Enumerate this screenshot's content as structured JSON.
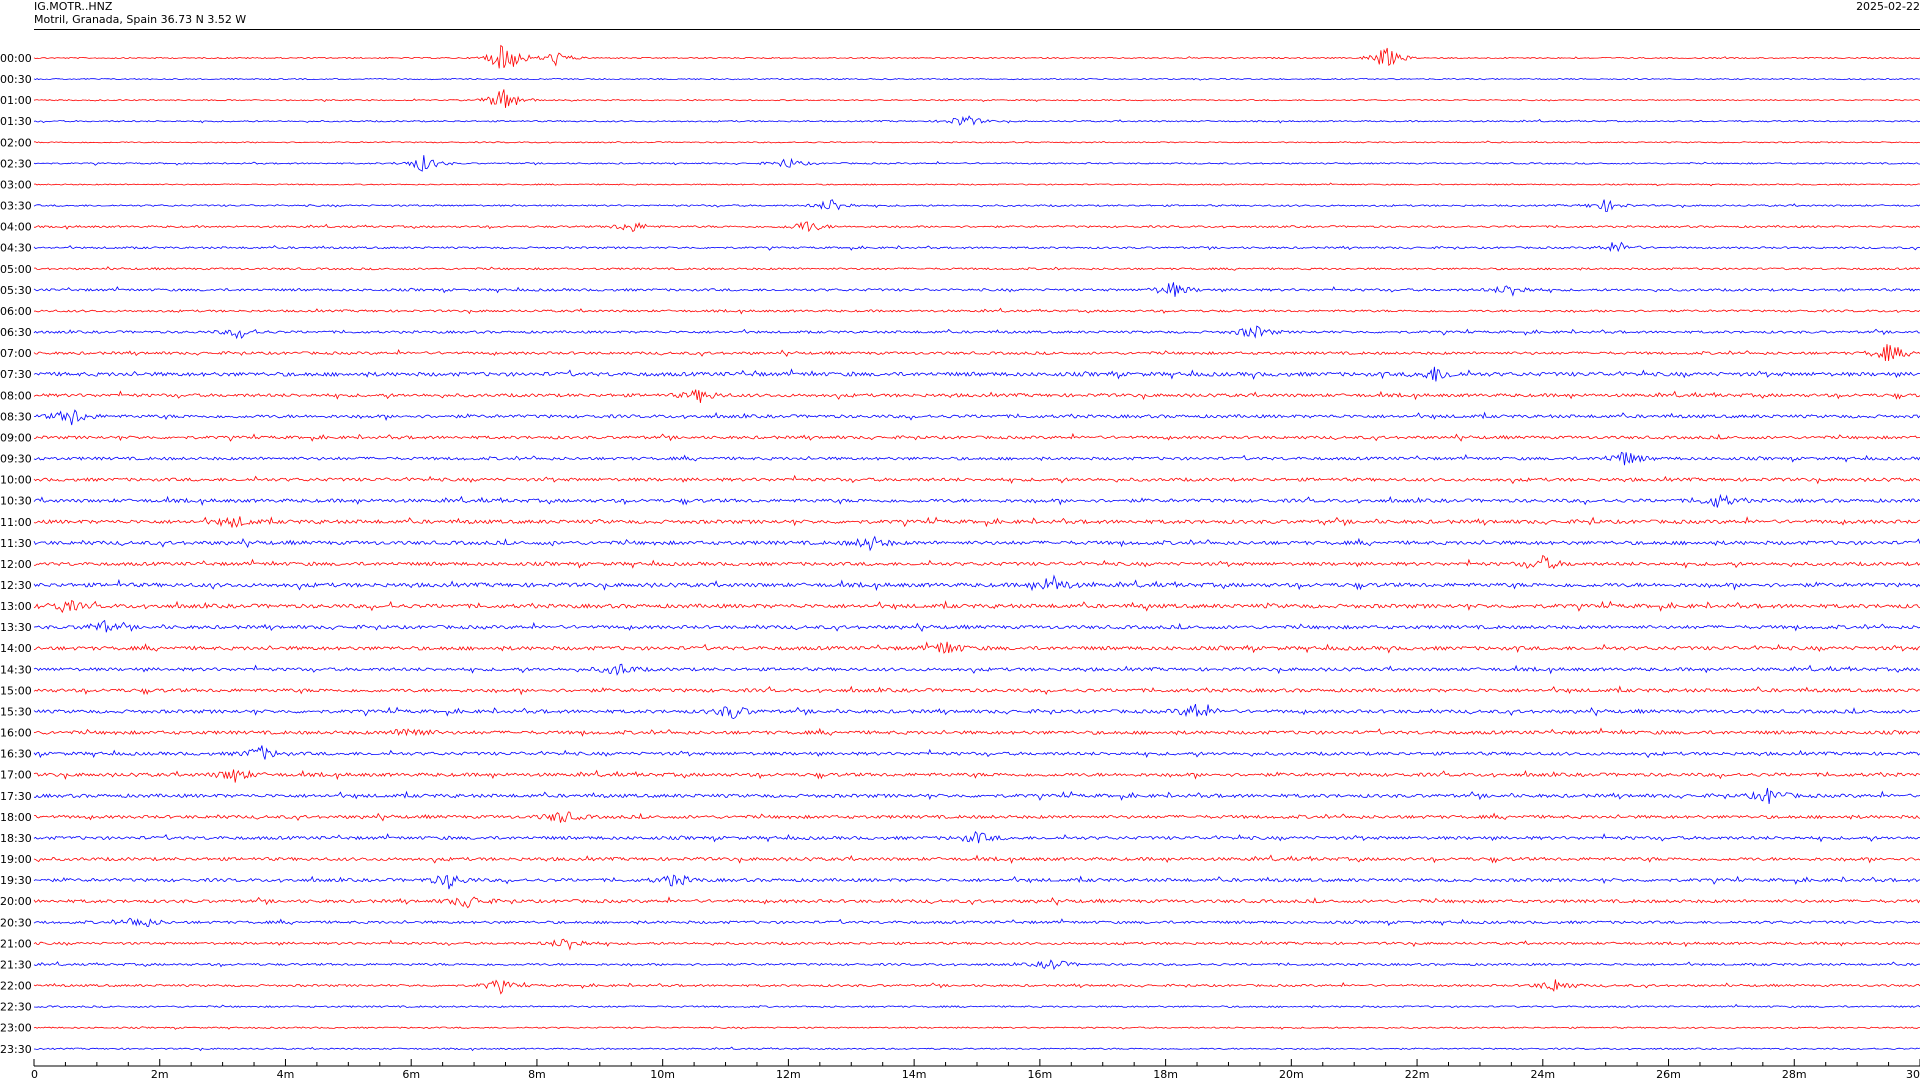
{
  "header": {
    "station": "IG.MOTR..HNZ",
    "location": "Motril, Granada, Spain  36.73 N 3.52 W",
    "date": "2025-02-22"
  },
  "chart_data": {
    "type": "line",
    "title": "",
    "xlabel": "",
    "ylabel": "",
    "x_unit": "minutes",
    "xlim": [
      0,
      30
    ],
    "x_tick_labels": [
      "0",
      "2m",
      "4m",
      "6m",
      "8m",
      "10m",
      "12m",
      "14m",
      "16m",
      "18m",
      "20m",
      "22m",
      "24m",
      "26m",
      "28m",
      "30"
    ],
    "row_labels": [
      "00:00",
      "00:30",
      "01:00",
      "01:30",
      "02:00",
      "02:30",
      "03:00",
      "03:30",
      "04:00",
      "04:30",
      "05:00",
      "05:30",
      "06:00",
      "06:30",
      "07:00",
      "07:30",
      "08:00",
      "08:30",
      "09:00",
      "09:30",
      "10:00",
      "10:30",
      "11:00",
      "11:30",
      "12:00",
      "12:30",
      "13:00",
      "13:30",
      "14:00",
      "14:30",
      "15:00",
      "15:30",
      "16:00",
      "16:30",
      "17:00",
      "17:30",
      "18:00",
      "18:30",
      "19:00",
      "19:30",
      "20:00",
      "20:30",
      "21:00",
      "21:30",
      "22:00",
      "22:30",
      "23:00",
      "23:30"
    ],
    "trace_colors": [
      "#ff0000",
      "#0000ff"
    ],
    "row_activity": [
      0.5,
      0.5,
      0.5,
      0.6,
      0.5,
      0.6,
      0.5,
      0.7,
      0.8,
      0.8,
      0.8,
      1.0,
      0.9,
      1.0,
      1.1,
      1.6,
      1.3,
      1.3,
      1.2,
      1.2,
      1.3,
      1.4,
      1.5,
      1.5,
      1.4,
      1.6,
      1.6,
      1.4,
      1.5,
      1.3,
      1.4,
      1.4,
      1.4,
      1.3,
      1.4,
      1.4,
      1.3,
      1.3,
      1.3,
      1.3,
      1.3,
      1.1,
      1.0,
      0.9,
      0.9,
      0.7,
      0.6,
      0.6
    ],
    "events": [
      {
        "row": 0,
        "x": 7.5,
        "amp": 3.2
      },
      {
        "row": 0,
        "x": 21.5,
        "amp": 2.0
      },
      {
        "row": 0,
        "x": 8.3,
        "amp": 1.2
      },
      {
        "row": 2,
        "x": 7.5,
        "amp": 2.5
      },
      {
        "row": 3,
        "x": 14.8,
        "amp": 1.2
      },
      {
        "row": 5,
        "x": 6.2,
        "amp": 1.5
      },
      {
        "row": 5,
        "x": 12.0,
        "amp": 0.9
      },
      {
        "row": 7,
        "x": 12.7,
        "amp": 1.2
      },
      {
        "row": 7,
        "x": 25.0,
        "amp": 1.0
      },
      {
        "row": 8,
        "x": 12.3,
        "amp": 1.1
      },
      {
        "row": 8,
        "x": 9.5,
        "amp": 1.0
      },
      {
        "row": 9,
        "x": 25.2,
        "amp": 1.0
      },
      {
        "row": 11,
        "x": 18.1,
        "amp": 1.4
      },
      {
        "row": 11,
        "x": 23.5,
        "amp": 1.1
      },
      {
        "row": 13,
        "x": 3.3,
        "amp": 1.0
      },
      {
        "row": 13,
        "x": 19.4,
        "amp": 1.2
      },
      {
        "row": 14,
        "x": 29.5,
        "amp": 1.5
      },
      {
        "row": 15,
        "x": 22.3,
        "amp": 1.3
      },
      {
        "row": 16,
        "x": 10.6,
        "amp": 1.1
      },
      {
        "row": 17,
        "x": 0.6,
        "amp": 1.5
      },
      {
        "row": 19,
        "x": 25.3,
        "amp": 1.3
      },
      {
        "row": 21,
        "x": 26.8,
        "amp": 1.2
      },
      {
        "row": 22,
        "x": 3.2,
        "amp": 1.0
      },
      {
        "row": 23,
        "x": 13.3,
        "amp": 1.2
      },
      {
        "row": 24,
        "x": 24.0,
        "amp": 1.3
      },
      {
        "row": 25,
        "x": 16.2,
        "amp": 1.6
      },
      {
        "row": 26,
        "x": 0.5,
        "amp": 1.1
      },
      {
        "row": 27,
        "x": 1.1,
        "amp": 1.0
      },
      {
        "row": 28,
        "x": 14.5,
        "amp": 1.2
      },
      {
        "row": 29,
        "x": 9.3,
        "amp": 1.1
      },
      {
        "row": 31,
        "x": 11.1,
        "amp": 1.3
      },
      {
        "row": 31,
        "x": 18.5,
        "amp": 1.5
      },
      {
        "row": 32,
        "x": 6.0,
        "amp": 1.1
      },
      {
        "row": 33,
        "x": 3.6,
        "amp": 1.3
      },
      {
        "row": 34,
        "x": 3.2,
        "amp": 1.2
      },
      {
        "row": 35,
        "x": 27.6,
        "amp": 1.3
      },
      {
        "row": 36,
        "x": 8.4,
        "amp": 1.1
      },
      {
        "row": 37,
        "x": 15.0,
        "amp": 1.0
      },
      {
        "row": 39,
        "x": 6.6,
        "amp": 1.3
      },
      {
        "row": 39,
        "x": 10.2,
        "amp": 1.1
      },
      {
        "row": 40,
        "x": 6.9,
        "amp": 1.2
      },
      {
        "row": 41,
        "x": 1.7,
        "amp": 1.1
      },
      {
        "row": 42,
        "x": 8.5,
        "amp": 1.2
      },
      {
        "row": 43,
        "x": 16.2,
        "amp": 1.0
      },
      {
        "row": 44,
        "x": 7.4,
        "amp": 1.1
      },
      {
        "row": 44,
        "x": 24.2,
        "amp": 1.2
      }
    ]
  }
}
